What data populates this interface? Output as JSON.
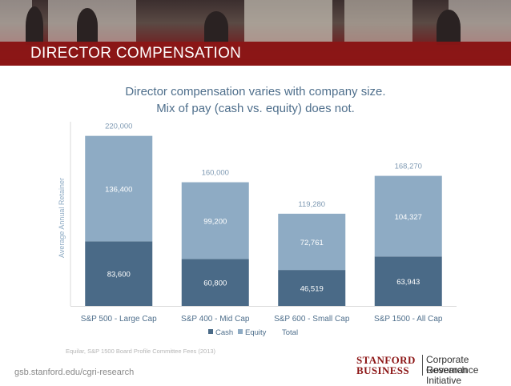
{
  "header": {
    "title": "DIRECTOR COMPENSATION"
  },
  "subtitle": {
    "line1": "Director compensation varies with company size.",
    "line2": "Mix of pay (cash vs. equity) does not."
  },
  "chart_data": {
    "type": "bar",
    "stacked": true,
    "categories": [
      "S&P 500 - Large Cap",
      "S&P 400 - Mid Cap",
      "S&P 600 - Small Cap",
      "S&P 1500 - All Cap"
    ],
    "series": [
      {
        "name": "Cash",
        "values": [
          83600,
          60800,
          46519,
          63943
        ],
        "labels": [
          "83,600",
          "60,800",
          "46,519",
          "63,943"
        ],
        "color": "#4a6a87"
      },
      {
        "name": "Equity",
        "values": [
          136400,
          99200,
          72761,
          104327
        ],
        "labels": [
          "136,400",
          "99,200",
          "72,761",
          "104,327"
        ],
        "color": "#8eabc4"
      }
    ],
    "totals": {
      "name": "Total",
      "values": [
        220000,
        160000,
        119280,
        168270
      ],
      "labels": [
        "220,000",
        "160,000",
        "119,280",
        "168,270"
      ]
    },
    "ylabel": "Average Annual Retainer",
    "xlabel": "",
    "ylim": [
      0,
      230000
    ],
    "legend": [
      "Cash",
      "Equity",
      "Total"
    ],
    "legend_position": "bottom",
    "grid": false
  },
  "source": "Equilar, S&P 1500 Board Profile Committee Fees (2013)",
  "footer": {
    "url": "gsb.stanford.edu/cgri-research",
    "logo_line1": "STANFORD",
    "logo_line2": "BUSINESS",
    "initiative_line1": "Corporate Governance",
    "initiative_line2": "Research Initiative"
  },
  "colors": {
    "brand_red": "#8c1515",
    "cash": "#4a6a87",
    "equity": "#8eabc4",
    "title_text": "#4f6f8c"
  }
}
